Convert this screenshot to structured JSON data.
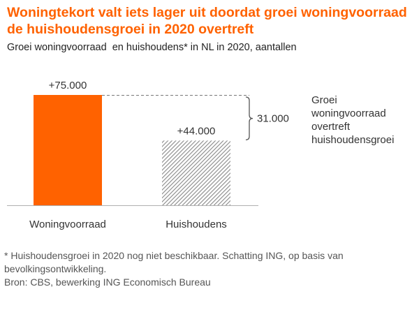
{
  "title_line1": "Woningtekort valt iets lager uit doordat groei woningvoorraad",
  "title_line2": "de huishoudensgroei in 2020 overtreft",
  "subtitle": "Groei woningvoorraad  en huishoudens* in NL in 2020, aantallen",
  "colors": {
    "accent": "#FF6200",
    "hatch": "#888888",
    "text": "#333333"
  },
  "chart_data": {
    "type": "bar",
    "title": "Woningtekort valt iets lager uit doordat groei woningvoorraad de huishoudensgroei in 2020 overtreft",
    "subtitle": "Groei woningvoorraad  en huishoudens* in NL in 2020, aantallen",
    "categories": [
      "Woningvoorraad",
      "Huishoudens"
    ],
    "values": [
      75000,
      44000
    ],
    "data_labels": [
      "+75.000",
      "+44.000"
    ],
    "ylim": [
      0,
      75000
    ],
    "grid": false,
    "difference": {
      "value": 31000,
      "label": "31.000",
      "annotation": [
        "Groei",
        "woningvoorraad",
        "overtreft",
        "huishoudensgroei"
      ]
    }
  },
  "footnotes": [
    "* Huishoudensgroei in 2020 nog niet beschikbaar. Schatting ING, op basis van",
    "bevolkingsontwikkeling.",
    "Bron: CBS, bewerking ING Economisch Bureau"
  ]
}
